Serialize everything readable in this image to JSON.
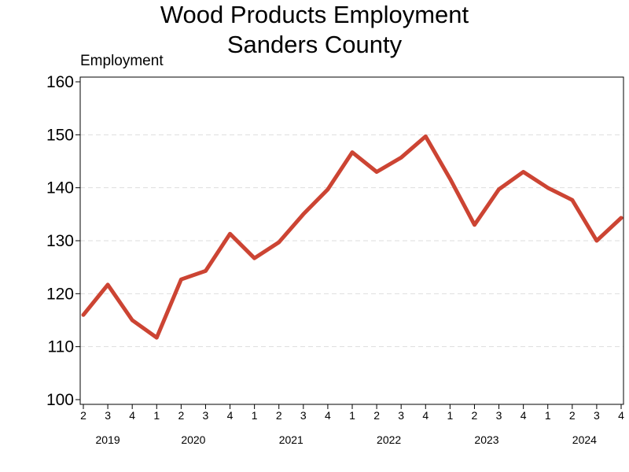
{
  "chart_data": {
    "type": "line",
    "title_line1": "Wood Products Employment",
    "title_line2": "Sanders County",
    "ylabel": "Employment",
    "xlabel": "",
    "ylim": [
      100,
      160
    ],
    "yticks": [
      100,
      110,
      120,
      130,
      140,
      150,
      160
    ],
    "grid": true,
    "line_color": "#cc4433",
    "categories": [
      {
        "q": "2",
        "year": "2019"
      },
      {
        "q": "3",
        "year": "2019"
      },
      {
        "q": "4",
        "year": "2019"
      },
      {
        "q": "1",
        "year": "2020"
      },
      {
        "q": "2",
        "year": "2020"
      },
      {
        "q": "3",
        "year": "2020"
      },
      {
        "q": "4",
        "year": "2020"
      },
      {
        "q": "1",
        "year": "2021"
      },
      {
        "q": "2",
        "year": "2021"
      },
      {
        "q": "3",
        "year": "2021"
      },
      {
        "q": "4",
        "year": "2021"
      },
      {
        "q": "1",
        "year": "2022"
      },
      {
        "q": "2",
        "year": "2022"
      },
      {
        "q": "3",
        "year": "2022"
      },
      {
        "q": "4",
        "year": "2022"
      },
      {
        "q": "1",
        "year": "2023"
      },
      {
        "q": "2",
        "year": "2023"
      },
      {
        "q": "3",
        "year": "2023"
      },
      {
        "q": "4",
        "year": "2023"
      },
      {
        "q": "1",
        "year": "2024"
      },
      {
        "q": "2",
        "year": "2024"
      },
      {
        "q": "3",
        "year": "2024"
      },
      {
        "q": "4",
        "year": "2024"
      }
    ],
    "series": [
      {
        "values": [
          116,
          121.7,
          115,
          111.7,
          122.7,
          124.3,
          131.3,
          126.7,
          129.7,
          135,
          139.7,
          146.7,
          143,
          145.7,
          149.7,
          141.7,
          133,
          139.7,
          143,
          140,
          137.7,
          130,
          134.3
        ]
      }
    ]
  }
}
